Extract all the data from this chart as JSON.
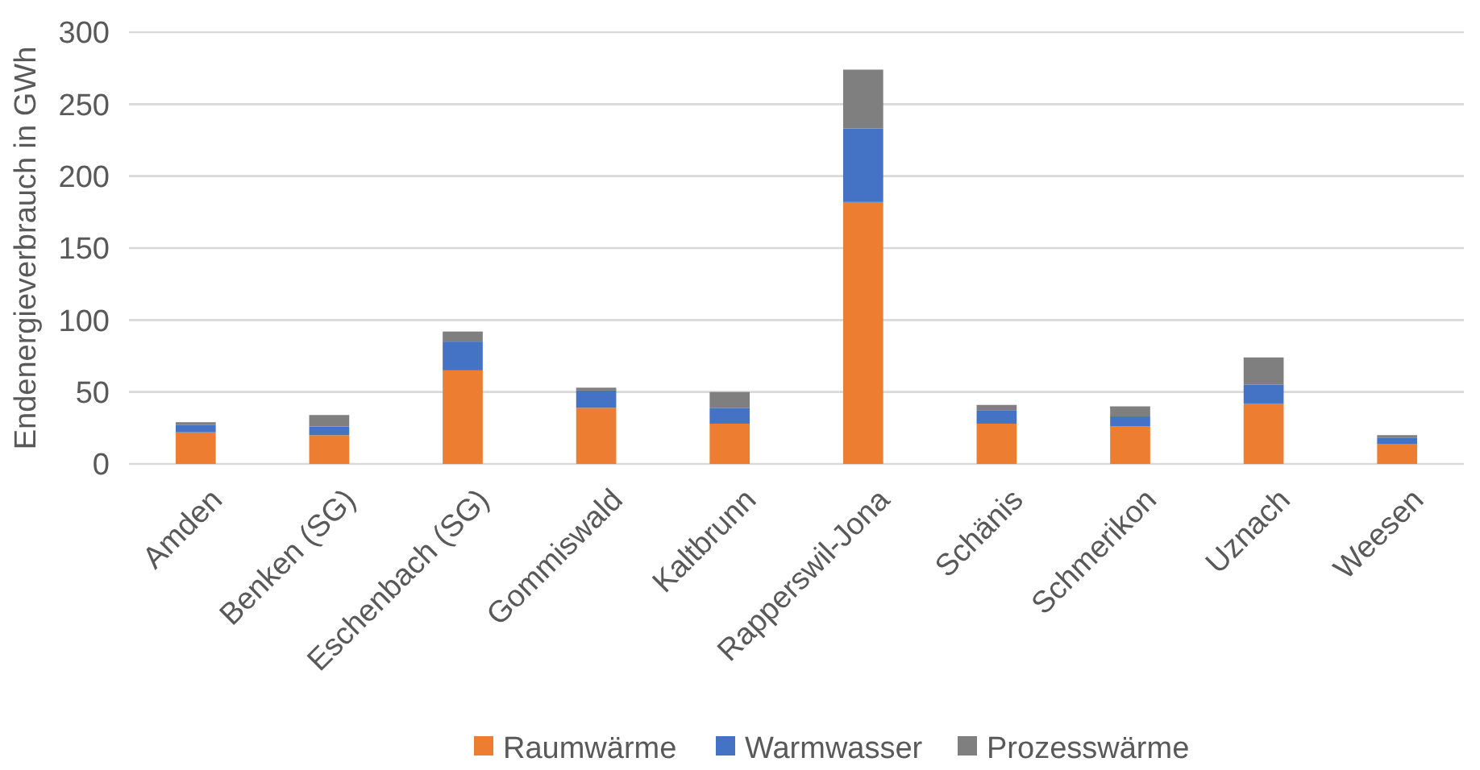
{
  "chart_data": {
    "type": "bar",
    "stacked": true,
    "ylabel": "Endenergieverbrauch  in GWh",
    "categories": [
      "Amden",
      "Benken (SG)",
      "Eschenbach (SG)",
      "Gommiswald",
      "Kaltbrunn",
      "Rapperswil-Jona",
      "Schänis",
      "Schmerikon",
      "Uznach",
      "Weesen"
    ],
    "series": [
      {
        "name": "Raumwärme",
        "color": "#ed7d31",
        "values": [
          22,
          20,
          65,
          39,
          28,
          182,
          28,
          26,
          42,
          14
        ]
      },
      {
        "name": "Warmwasser",
        "color": "#4472c4",
        "values": [
          5,
          6,
          20,
          12,
          11,
          51,
          9,
          7,
          13,
          4
        ]
      },
      {
        "name": "Prozesswärme",
        "color": "#7f7f7f",
        "values": [
          2,
          8,
          7,
          2,
          11,
          41,
          4,
          7,
          19,
          2
        ]
      }
    ],
    "ylim": [
      0,
      300
    ],
    "yticks": [
      0,
      50,
      100,
      150,
      200,
      250,
      300
    ],
    "grid": "y",
    "legend": "bottom"
  }
}
